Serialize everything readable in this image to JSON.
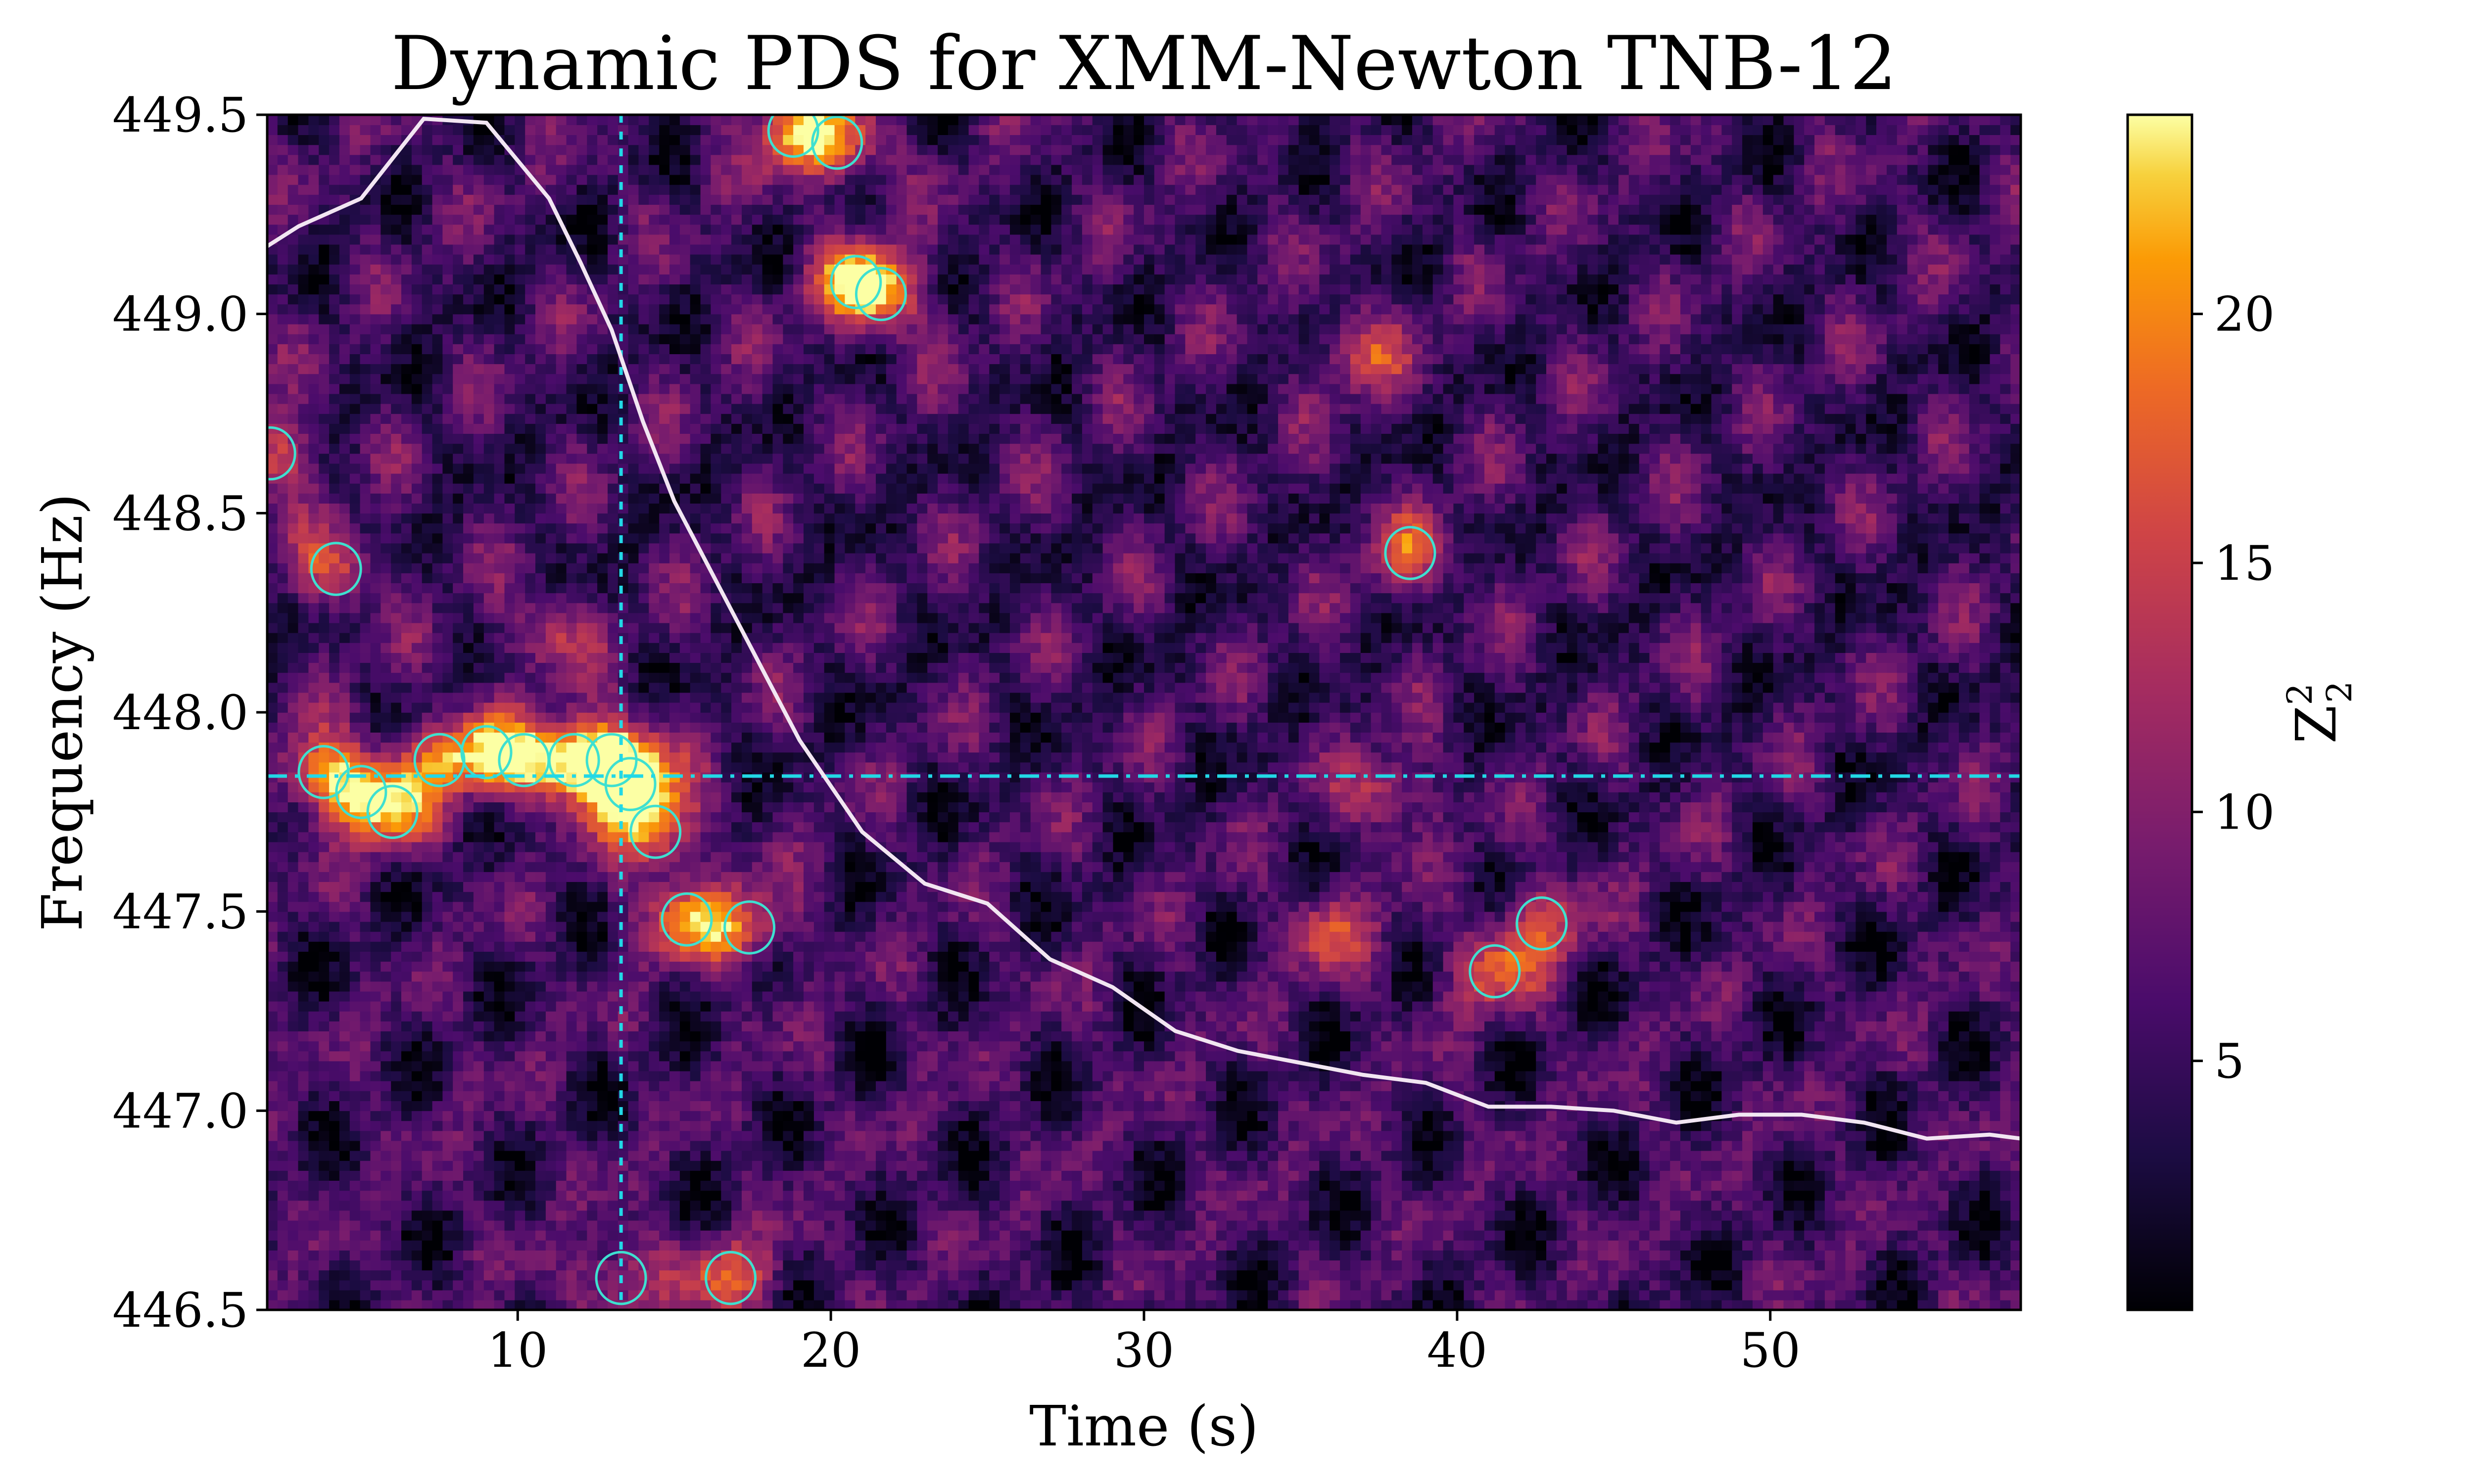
{
  "chart_data": {
    "type": "heatmap",
    "title": "Dynamic PDS for XMM-Newton TNB-12",
    "xlabel": "Time (s)",
    "ylabel": "Frequency (Hz)",
    "colorbar_label": "Z",
    "colorbar_label_sup": "2",
    "colorbar_label_sub": "2",
    "colormap": "inferno",
    "xlim": [
      2,
      58
    ],
    "ylim": [
      446.5,
      449.5
    ],
    "color_range": [
      0,
      24
    ],
    "x_ticks": [
      "10",
      "20",
      "30",
      "40",
      "50"
    ],
    "x_tick_values": [
      10,
      20,
      30,
      40,
      50
    ],
    "y_ticks": [
      "446.5",
      "447.0",
      "447.5",
      "448.0",
      "448.5",
      "449.0",
      "449.5"
    ],
    "y_tick_values": [
      446.5,
      447.0,
      447.5,
      448.0,
      448.5,
      449.0,
      449.5
    ],
    "colorbar_ticks": [
      "5",
      "10",
      "15",
      "20"
    ],
    "colorbar_tick_values": [
      5,
      10,
      15,
      20
    ],
    "reference_lines": {
      "vertical_time": 13.3,
      "horizontal_frequency": 447.84,
      "color": "#22d8e6"
    },
    "track_line": {
      "color": "#f2e6f2",
      "x": [
        2,
        3,
        5,
        7,
        9,
        11,
        12,
        13,
        14,
        15,
        16,
        17,
        19,
        21,
        23,
        25,
        27,
        29,
        31,
        33,
        35,
        37,
        39,
        41,
        43,
        45,
        47,
        49,
        51,
        53,
        55,
        57,
        58
      ],
      "y": [
        449.17,
        449.22,
        449.29,
        449.49,
        449.48,
        449.29,
        449.13,
        448.96,
        448.73,
        448.53,
        448.38,
        448.23,
        447.93,
        447.7,
        447.57,
        447.52,
        447.38,
        447.31,
        447.2,
        447.15,
        447.12,
        447.09,
        447.07,
        447.01,
        447.01,
        447.0,
        446.97,
        446.99,
        446.99,
        446.97,
        446.93,
        446.94,
        446.93
      ]
    },
    "signal_clusters": [
      {
        "t": 3.8,
        "f": 447.85,
        "amp": 18
      },
      {
        "t": 5.0,
        "f": 447.8,
        "amp": 17
      },
      {
        "t": 6.0,
        "f": 447.75,
        "amp": 16
      },
      {
        "t": 7.5,
        "f": 447.88,
        "amp": 15
      },
      {
        "t": 9.0,
        "f": 447.9,
        "amp": 16
      },
      {
        "t": 10.2,
        "f": 447.88,
        "amp": 15
      },
      {
        "t": 11.8,
        "f": 447.88,
        "amp": 19
      },
      {
        "t": 13.0,
        "f": 447.88,
        "amp": 21
      },
      {
        "t": 13.6,
        "f": 447.82,
        "amp": 23
      },
      {
        "t": 14.4,
        "f": 447.7,
        "amp": 19
      },
      {
        "t": 15.4,
        "f": 447.48,
        "amp": 18
      },
      {
        "t": 17.4,
        "f": 447.46,
        "amp": 16
      },
      {
        "t": 18.8,
        "f": 449.46,
        "amp": 17
      },
      {
        "t": 20.2,
        "f": 449.43,
        "amp": 18
      },
      {
        "t": 20.8,
        "f": 449.08,
        "amp": 18
      },
      {
        "t": 21.6,
        "f": 449.05,
        "amp": 17
      },
      {
        "t": 16.8,
        "f": 446.58,
        "amp": 16
      },
      {
        "t": 13.3,
        "f": 446.58,
        "amp": 15
      },
      {
        "t": 2.1,
        "f": 448.65,
        "amp": 17
      },
      {
        "t": 4.2,
        "f": 448.36,
        "amp": 15
      },
      {
        "t": 38.5,
        "f": 448.4,
        "amp": 15
      },
      {
        "t": 41.2,
        "f": 447.35,
        "amp": 15
      },
      {
        "t": 42.7,
        "f": 447.47,
        "amp": 15
      },
      {
        "t": 37.0,
        "f": 448.9,
        "amp": 14
      },
      {
        "t": 36.0,
        "f": 447.45,
        "amp": 14
      },
      {
        "t": 37.8,
        "f": 447.8,
        "amp": 14
      },
      {
        "t": 11.0,
        "f": 448.2,
        "amp": 13
      }
    ]
  }
}
